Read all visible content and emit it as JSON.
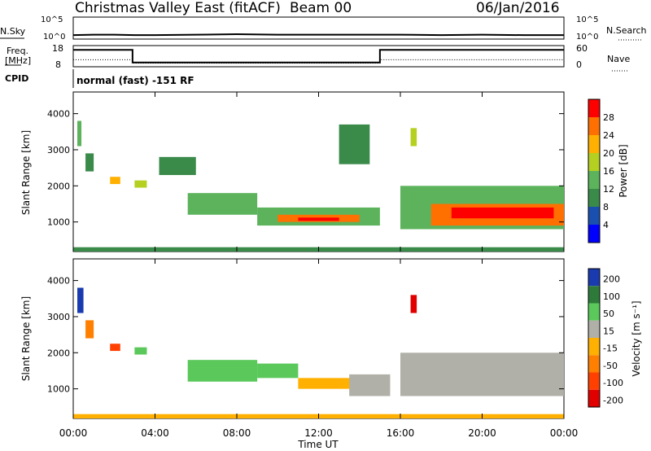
{
  "header": {
    "title": "Christmas Valley East (fitACF)",
    "beam": "Beam 00",
    "date": "06/Jan/2016"
  },
  "top_panels": {
    "nsky_label": "N.Sky",
    "nsearch_label": "N.Search",
    "noise_left_ticks": [
      "10^5",
      "10^0"
    ],
    "noise_right_ticks": [
      "10^5",
      "10^0"
    ],
    "freq_label_line1": "Freq.",
    "freq_label_line2": "[MHz]",
    "freq_ticks": [
      "18",
      "8"
    ],
    "nave_label": "Nave",
    "nave_ticks": [
      "60",
      "0"
    ],
    "cpid_label": "CPID",
    "cpid_text": "normal (fast) -151 RF"
  },
  "power_panel": {
    "ylabel": "Slant Range [km]",
    "yticks": [
      "4000",
      "3000",
      "2000",
      "1000"
    ],
    "colorbar_label": "Power [dB]",
    "colorbar_ticks": [
      "28",
      "24",
      "20",
      "16",
      "12",
      "8",
      "4"
    ],
    "colors": [
      "#0000ff",
      "#1a4fb0",
      "#3a8a4a",
      "#5cb35c",
      "#b5d020",
      "#ffb000",
      "#ff7000",
      "#ff0000"
    ]
  },
  "velocity_panel": {
    "ylabel": "Slant Range [km]",
    "yticks": [
      "4000",
      "3000",
      "2000",
      "1000"
    ],
    "colorbar_label": "Velocity [m s⁻¹]",
    "colorbar_ticks": [
      "200",
      "100",
      "50",
      "15",
      "-15",
      "-50",
      "-100",
      "-200"
    ],
    "colors": [
      "#1a3ab0",
      "#2e7a3a",
      "#5ac85a",
      "#b0b0a8",
      "#ffb000",
      "#ff8000",
      "#ff4000",
      "#e00000"
    ]
  },
  "x_axis": {
    "xlabel": "Time UT",
    "ticks": [
      "00:00",
      "04:00",
      "08:00",
      "12:00",
      "16:00",
      "20:00",
      "00:00"
    ]
  },
  "chart_data": [
    {
      "type": "line",
      "title": "N.Sky / N.Search",
      "x_unit": "hours UT",
      "series": [
        {
          "name": "N.Sky",
          "x": [
            0,
            1,
            2,
            3,
            4,
            6,
            8,
            10,
            12,
            14,
            16,
            18,
            20,
            22,
            24
          ],
          "y_log10": [
            0.9,
            1.0,
            1.0,
            0.9,
            0.9,
            1.0,
            1.1,
            1.0,
            1.0,
            1.0,
            1.0,
            0.9,
            1.0,
            0.9,
            0.9
          ]
        }
      ],
      "ylim_log10": [
        0,
        5
      ]
    },
    {
      "type": "line",
      "title": "Freq. [MHz] / Nave",
      "series": [
        {
          "name": "Freq. [MHz]",
          "x": [
            0,
            2.9,
            2.9,
            15.0,
            15.0,
            24
          ],
          "y": [
            16,
            16,
            10,
            10,
            16,
            16
          ],
          "ylim": [
            8,
            18
          ]
        },
        {
          "name": "Nave",
          "x": [
            0,
            2.9,
            2.9,
            15.0,
            15.0,
            24
          ],
          "y": [
            20,
            20,
            10,
            10,
            20,
            20
          ],
          "ylim": [
            0,
            60
          ]
        }
      ]
    },
    {
      "type": "heatmap",
      "title": "Power [dB]",
      "xlim": [
        0,
        24
      ],
      "ylim": [
        180,
        4600
      ],
      "clim": [
        0,
        30
      ],
      "patches": [
        {
          "t0": 0.0,
          "t1": 24.0,
          "r0": 180,
          "r1": 300,
          "value": 10
        },
        {
          "t0": 0.2,
          "t1": 0.4,
          "r0": 3100,
          "r1": 3800,
          "value": 12
        },
        {
          "t0": 0.6,
          "t1": 1.0,
          "r0": 2400,
          "r1": 2900,
          "value": 10
        },
        {
          "t0": 1.8,
          "t1": 2.3,
          "r0": 2050,
          "r1": 2250,
          "value": 20
        },
        {
          "t0": 3.0,
          "t1": 3.6,
          "r0": 1950,
          "r1": 2150,
          "value": 18
        },
        {
          "t0": 4.2,
          "t1": 6.0,
          "r0": 2300,
          "r1": 2800,
          "value": 8
        },
        {
          "t0": 5.6,
          "t1": 9.0,
          "r0": 1200,
          "r1": 1800,
          "value": 12
        },
        {
          "t0": 9.0,
          "t1": 15.0,
          "r0": 900,
          "r1": 1400,
          "value": 14
        },
        {
          "t0": 10.0,
          "t1": 14.0,
          "r0": 1000,
          "r1": 1200,
          "value": 24
        },
        {
          "t0": 11.0,
          "t1": 13.0,
          "r0": 1030,
          "r1": 1120,
          "value": 28
        },
        {
          "t0": 13.0,
          "t1": 14.5,
          "r0": 2600,
          "r1": 3700,
          "value": 8
        },
        {
          "t0": 16.5,
          "t1": 16.8,
          "r0": 3100,
          "r1": 3600,
          "value": 18
        },
        {
          "t0": 16.0,
          "t1": 24.0,
          "r0": 800,
          "r1": 2000,
          "value": 12
        },
        {
          "t0": 17.5,
          "t1": 24.0,
          "r0": 900,
          "r1": 1500,
          "value": 24
        },
        {
          "t0": 18.5,
          "t1": 23.5,
          "r0": 1100,
          "r1": 1400,
          "value": 28
        }
      ]
    },
    {
      "type": "heatmap",
      "title": "Velocity [m s⁻¹]",
      "xlim": [
        0,
        24
      ],
      "ylim": [
        180,
        4600
      ],
      "clim": [
        -200,
        200
      ],
      "patches": [
        {
          "t0": 0.0,
          "t1": 24.0,
          "r0": 180,
          "r1": 300,
          "value": -30
        },
        {
          "t0": 0.2,
          "t1": 0.5,
          "r0": 3100,
          "r1": 3800,
          "value": 200
        },
        {
          "t0": 0.6,
          "t1": 1.0,
          "r0": 2400,
          "r1": 2900,
          "value": -60
        },
        {
          "t0": 1.8,
          "t1": 2.3,
          "r0": 2050,
          "r1": 2250,
          "value": -150
        },
        {
          "t0": 3.0,
          "t1": 3.6,
          "r0": 1950,
          "r1": 2150,
          "value": 60
        },
        {
          "t0": 5.6,
          "t1": 9.0,
          "r0": 1200,
          "r1": 1800,
          "value": 60
        },
        {
          "t0": 9.0,
          "t1": 11.0,
          "r0": 1300,
          "r1": 1700,
          "value": 80
        },
        {
          "t0": 11.0,
          "t1": 14.0,
          "r0": 1000,
          "r1": 1300,
          "value": -40
        },
        {
          "t0": 13.5,
          "t1": 15.5,
          "r0": 800,
          "r1": 1400,
          "value": 0
        },
        {
          "t0": 16.5,
          "t1": 16.8,
          "r0": 3100,
          "r1": 3600,
          "value": -200
        },
        {
          "t0": 16.0,
          "t1": 24.0,
          "r0": 800,
          "r1": 2000,
          "value": 0
        }
      ]
    }
  ]
}
